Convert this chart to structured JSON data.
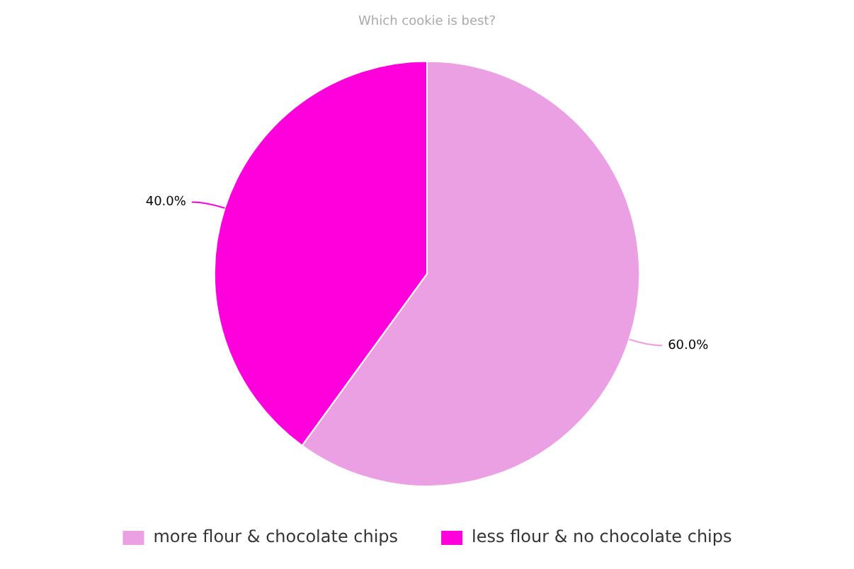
{
  "chart_data": {
    "type": "pie",
    "title": "Which cookie is best?",
    "categories": [
      "more flour & chocolate chips",
      "less flour & no chocolate chips"
    ],
    "values": [
      60,
      40
    ],
    "colors": [
      "#eba0e3",
      "#ff00dd"
    ],
    "value_labels": [
      "60.0%",
      "40.0%"
    ],
    "legend": "bottom"
  }
}
